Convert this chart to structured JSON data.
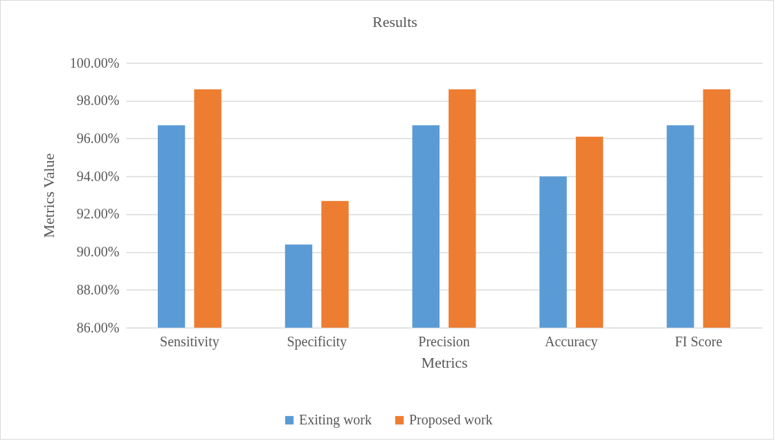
{
  "chart_data": {
    "type": "bar",
    "title": "Results",
    "xlabel": "Metrics",
    "ylabel": "Metrics Value",
    "categories": [
      "Sensitivity",
      "Specificity",
      "Precision",
      "Accuracy",
      "FI Score"
    ],
    "series": [
      {
        "name": "Exiting work",
        "color": "#5b9bd5",
        "values": [
          96.7,
          90.4,
          96.7,
          94.0,
          96.7
        ]
      },
      {
        "name": "Proposed work",
        "color": "#ed7d31",
        "values": [
          98.6,
          92.7,
          98.6,
          96.1,
          98.6
        ]
      }
    ],
    "ylim": [
      86,
      100
    ],
    "yticks": [
      {
        "value": 86,
        "label": "86.00%"
      },
      {
        "value": 88,
        "label": "88.00%"
      },
      {
        "value": 90,
        "label": "90.00%"
      },
      {
        "value": 92,
        "label": "92.00%"
      },
      {
        "value": 94,
        "label": "94.00%"
      },
      {
        "value": 96,
        "label": "96.00%"
      },
      {
        "value": 98,
        "label": "98.00%"
      },
      {
        "value": 100,
        "label": "100.00%"
      }
    ],
    "grid": "y",
    "legend": "bottom"
  }
}
